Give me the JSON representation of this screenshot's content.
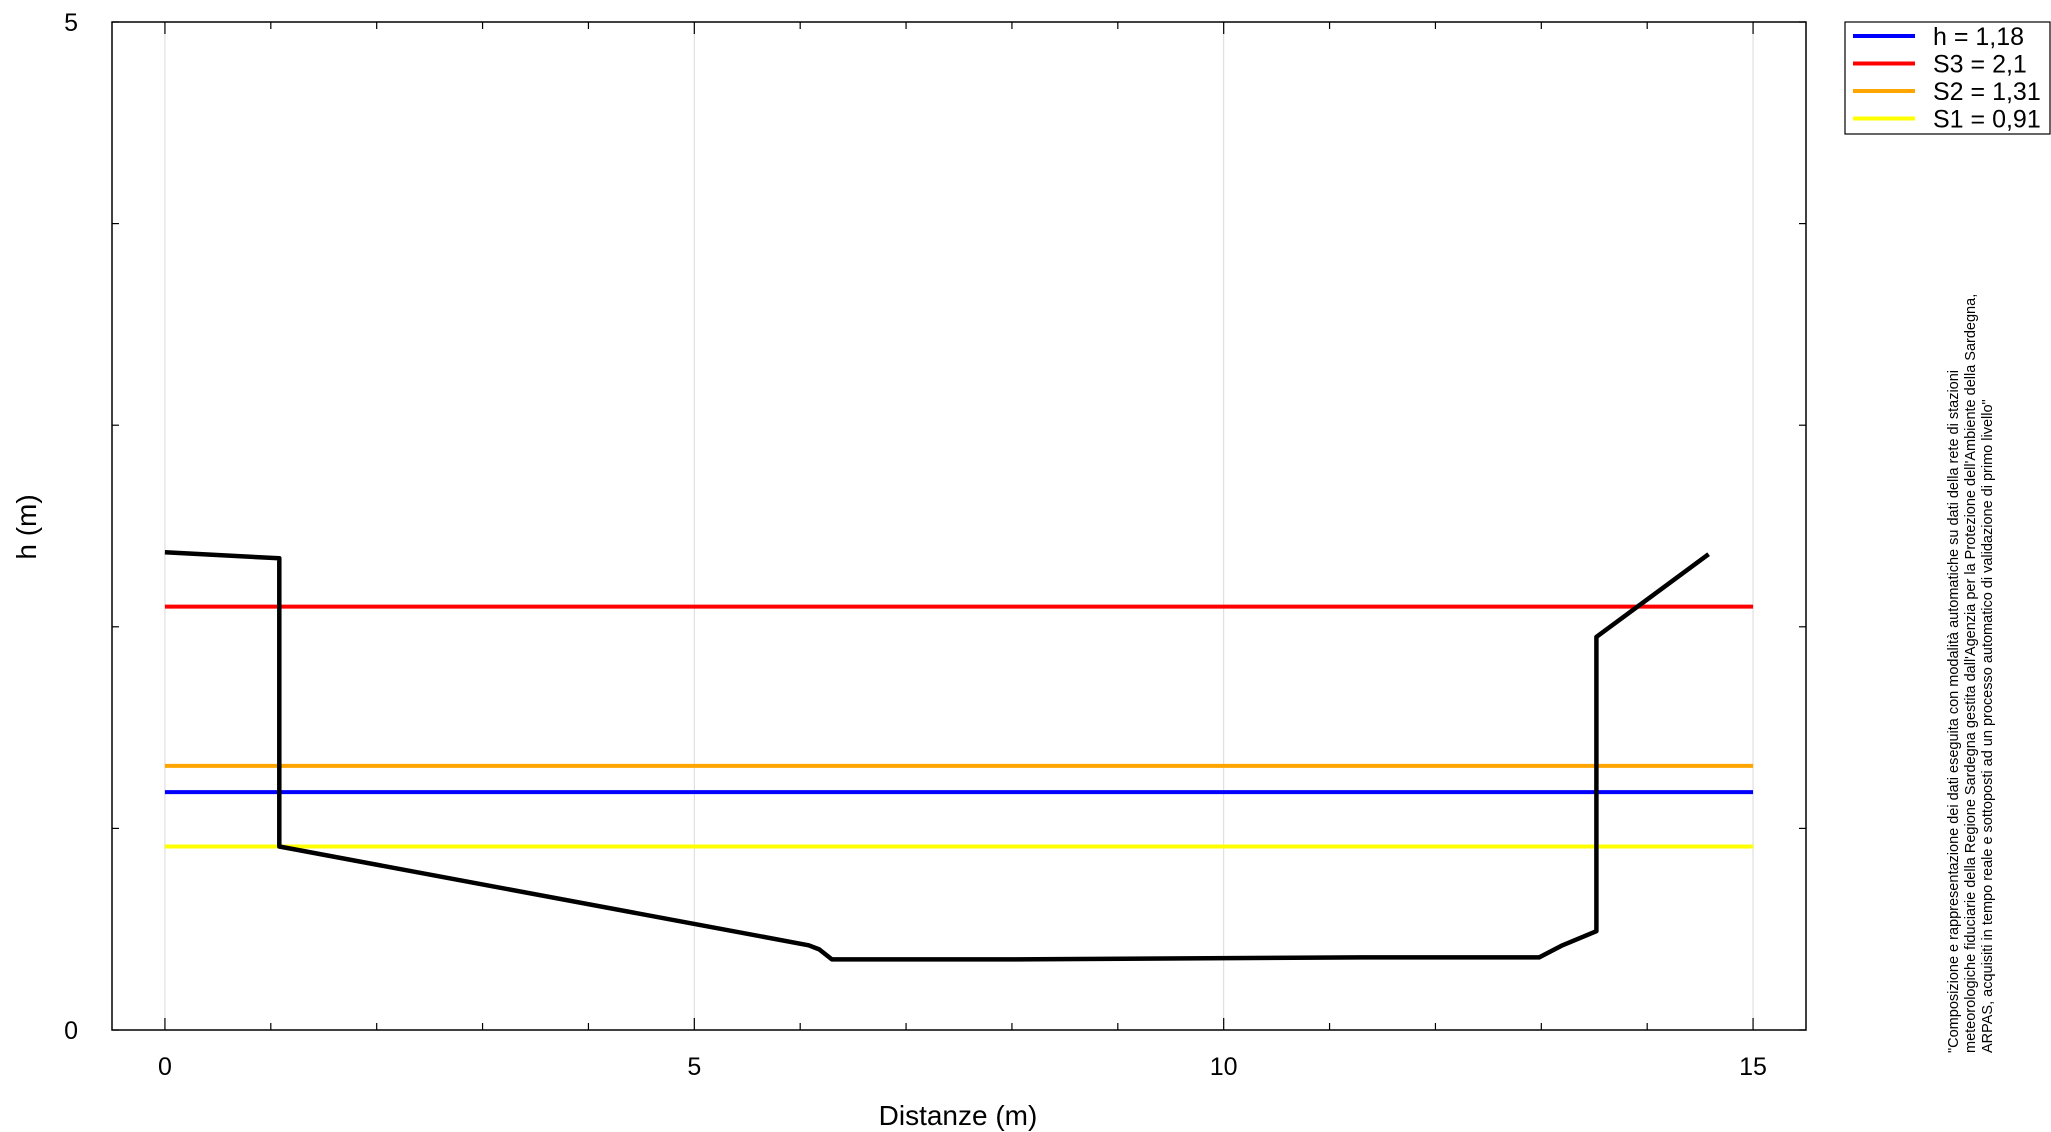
{
  "chart_data": {
    "type": "line",
    "xlabel": "Distanze (m)",
    "ylabel": "h (m)",
    "xlim": [
      -0.5,
      15.5
    ],
    "ylim": [
      0,
      5
    ],
    "x_ticks": [
      0,
      5,
      10,
      15
    ],
    "y_ticks": [
      0,
      5
    ],
    "grid": "vertical lines at major x ticks",
    "legend_position": "top-right, outside plot",
    "levels": [
      {
        "name": "h = 1,18",
        "value": 1.18,
        "color": "#0000ff"
      },
      {
        "name": "S3 = 2,1",
        "value": 2.1,
        "color": "#ff0000"
      },
      {
        "name": "S2 = 1,31",
        "value": 1.31,
        "color": "#ffa500"
      },
      {
        "name": "S1 = 0,91",
        "value": 0.91,
        "color": "#ffff00"
      }
    ],
    "level_x_range": [
      0,
      15
    ],
    "profile": {
      "color": "#000000",
      "x": [
        0,
        1.08,
        1.08,
        6.08,
        6.18,
        6.3,
        8.0,
        11.3,
        12.98,
        13.2,
        13.52,
        13.52,
        14.58
      ],
      "y": [
        2.37,
        2.34,
        0.91,
        0.42,
        0.4,
        0.35,
        0.35,
        0.36,
        0.36,
        0.42,
        0.49,
        1.95,
        2.36
      ]
    },
    "credit": [
      "\"Composizione e rappresentazione dei dati eseguita con modalità automatiche su dati della rete di stazioni",
      "meteorologiche fiduciarie della Regione Sardegna gestita dall'Agenzia per la Protezione dell'Ambiente della Sardegna,",
      "ARPAS, acquisiti in tempo reale e sottoposti ad un processo automatico di validazione di primo livello\""
    ]
  }
}
